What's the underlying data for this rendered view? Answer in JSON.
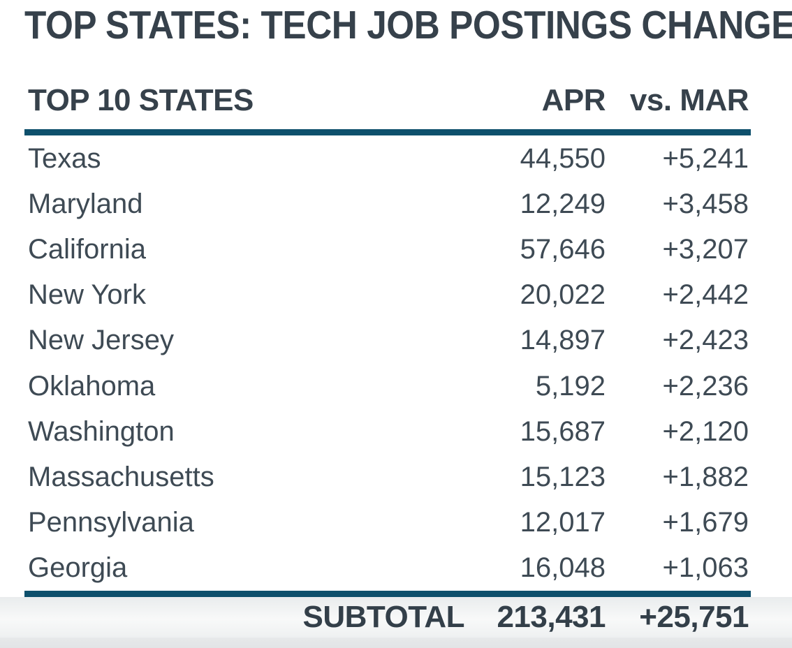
{
  "title": "TOP STATES: TECH JOB POSTINGS CHANGE",
  "table": {
    "columns": [
      "TOP 10 STATES",
      "APR",
      "vs. MAR"
    ],
    "rows": [
      {
        "state": "Texas",
        "apr": "44,550",
        "vs_mar": "+5,241"
      },
      {
        "state": "Maryland",
        "apr": "12,249",
        "vs_mar": "+3,458"
      },
      {
        "state": "California",
        "apr": "57,646",
        "vs_mar": "+3,207"
      },
      {
        "state": "New York",
        "apr": "20,022",
        "vs_mar": "+2,442"
      },
      {
        "state": "New Jersey",
        "apr": "14,897",
        "vs_mar": "+2,423"
      },
      {
        "state": "Oklahoma",
        "apr": "5,192",
        "vs_mar": "+2,236"
      },
      {
        "state": "Washington",
        "apr": "15,687",
        "vs_mar": "+2,120"
      },
      {
        "state": "Massachusetts",
        "apr": "15,123",
        "vs_mar": "+1,882"
      },
      {
        "state": "Pennsylvania",
        "apr": "12,017",
        "vs_mar": "+1,679"
      },
      {
        "state": "Georgia",
        "apr": "16,048",
        "vs_mar": "+1,063"
      }
    ],
    "subtotal": {
      "label": "SUBTOTAL",
      "apr": "213,431",
      "vs_mar": "+25,751"
    }
  },
  "chart_data": {
    "type": "table",
    "title": "TOP STATES: TECH JOB POSTINGS CHANGE",
    "columns": [
      "TOP 10 STATES",
      "APR",
      "vs. MAR"
    ],
    "categories": [
      "Texas",
      "Maryland",
      "California",
      "New York",
      "New Jersey",
      "Oklahoma",
      "Washington",
      "Massachusetts",
      "Pennsylvania",
      "Georgia"
    ],
    "series": [
      {
        "name": "APR",
        "values": [
          44550,
          12249,
          57646,
          20022,
          14897,
          5192,
          15687,
          15123,
          12017,
          16048
        ]
      },
      {
        "name": "vs. MAR",
        "values": [
          5241,
          3458,
          3207,
          2442,
          2423,
          2236,
          2120,
          1882,
          1679,
          1063
        ]
      }
    ],
    "subtotal": {
      "APR": 213431,
      "vs. MAR": 25751
    }
  },
  "colors": {
    "accent_rule": "#0e506c",
    "heading_text": "#36414b",
    "row_text": "#3e4a54",
    "subtotal_text": "#333f49",
    "subtotal_bg_top": "#e9eced",
    "subtotal_bg_bottom": "#eef0f1",
    "bottom_band": "#e2e4e6",
    "background": "#ffffff"
  }
}
